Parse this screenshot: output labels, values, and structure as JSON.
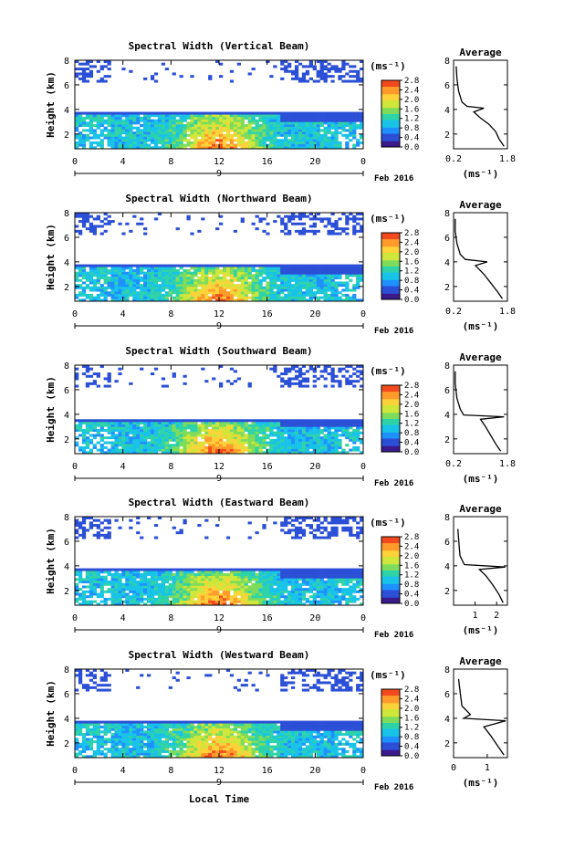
{
  "figure": {
    "month_label": "Feb 2016",
    "day_label": "9",
    "xlabel_bottom": "Local Time",
    "unit_label": "(ms⁻¹)",
    "avg_title": "Average",
    "avg_xlabel": "(ms⁻¹)",
    "colormap": [
      "#3a1a8c",
      "#2b4fd6",
      "#1e90ff",
      "#19c3e8",
      "#2ed3a8",
      "#7fdc5a",
      "#cfe63a",
      "#ffd23a",
      "#ff9b2a",
      "#f24a1e",
      "#c81010"
    ]
  },
  "chart_data": [
    {
      "type": "heatmap",
      "title": "Spectral Width (Vertical Beam)",
      "ylabel": "Height (km)",
      "x_ticks": [
        "0",
        "4",
        "8",
        "12",
        "16",
        "20",
        "0"
      ],
      "xlim": [
        0,
        24
      ],
      "y_ticks": [
        "2",
        "4",
        "6",
        "8"
      ],
      "ylim": [
        0.8,
        8
      ],
      "colorbar": {
        "ticks": [
          "2.8",
          "2.4",
          "2.0",
          "1.6",
          "1.2",
          "0.8",
          "0.4",
          "0.0"
        ],
        "range": [
          0,
          2.8
        ]
      },
      "average_profile": {
        "x_ticks": [
          "0.2",
          "1.8"
        ],
        "xlim": [
          0.2,
          1.8
        ],
        "y_ticks": [
          "2",
          "4",
          "6",
          "8"
        ],
        "ylim": [
          0.8,
          8
        ],
        "points": [
          [
            1.7,
            1.0
          ],
          [
            1.55,
            1.6
          ],
          [
            1.45,
            2.2
          ],
          [
            1.25,
            2.8
          ],
          [
            1.0,
            3.3
          ],
          [
            0.8,
            3.8
          ],
          [
            1.1,
            4.1
          ],
          [
            0.6,
            4.25
          ],
          [
            0.45,
            4.6
          ],
          [
            0.35,
            5.5
          ],
          [
            0.3,
            6.5
          ],
          [
            0.28,
            7.5
          ]
        ]
      }
    },
    {
      "type": "heatmap",
      "title": "Spectral Width (Northward Beam)",
      "ylabel": "Height (km)",
      "x_ticks": [
        "0",
        "4",
        "8",
        "12",
        "16",
        "20",
        "0"
      ],
      "xlim": [
        0,
        24
      ],
      "y_ticks": [
        "2",
        "4",
        "6",
        "8"
      ],
      "ylim": [
        0.8,
        8
      ],
      "colorbar": {
        "ticks": [
          "2.8",
          "2.4",
          "2.0",
          "1.6",
          "1.2",
          "0.8",
          "0.4",
          "0.0"
        ],
        "range": [
          0,
          2.8
        ]
      },
      "average_profile": {
        "x_ticks": [
          "0.2",
          "1.8"
        ],
        "xlim": [
          0.2,
          1.8
        ],
        "y_ticks": [
          "2",
          "4",
          "6",
          "8"
        ],
        "ylim": [
          0.8,
          8
        ],
        "points": [
          [
            1.65,
            1.0
          ],
          [
            1.5,
            1.6
          ],
          [
            1.3,
            2.3
          ],
          [
            1.1,
            3.0
          ],
          [
            0.85,
            3.7
          ],
          [
            1.2,
            4.0
          ],
          [
            0.55,
            4.2
          ],
          [
            0.4,
            4.6
          ],
          [
            0.3,
            5.5
          ],
          [
            0.25,
            6.5
          ],
          [
            0.25,
            7.5
          ]
        ]
      }
    },
    {
      "type": "heatmap",
      "title": "Spectral Width (Southward Beam)",
      "ylabel": "Height (km)",
      "x_ticks": [
        "0",
        "4",
        "8",
        "12",
        "16",
        "20",
        "0"
      ],
      "xlim": [
        0,
        24
      ],
      "y_ticks": [
        "2",
        "4",
        "6",
        "8"
      ],
      "ylim": [
        0.8,
        8
      ],
      "colorbar": {
        "ticks": [
          "2.8",
          "2.4",
          "2.0",
          "1.6",
          "1.2",
          "0.8",
          "0.4",
          "0.0"
        ],
        "range": [
          0,
          2.8
        ]
      },
      "average_profile": {
        "x_ticks": [
          "0.2",
          "1.8"
        ],
        "xlim": [
          0.2,
          1.8
        ],
        "y_ticks": [
          "2",
          "4",
          "6",
          "8"
        ],
        "ylim": [
          0.8,
          8
        ],
        "points": [
          [
            1.6,
            1.0
          ],
          [
            1.45,
            1.6
          ],
          [
            1.3,
            2.3
          ],
          [
            1.15,
            3.0
          ],
          [
            1.0,
            3.6
          ],
          [
            1.7,
            3.8
          ],
          [
            0.5,
            3.95
          ],
          [
            0.4,
            4.4
          ],
          [
            0.3,
            5.3
          ],
          [
            0.25,
            6.5
          ],
          [
            0.25,
            7.5
          ]
        ]
      }
    },
    {
      "type": "heatmap",
      "title": "Spectral Width (Eastward Beam)",
      "ylabel": "Height (km)",
      "x_ticks": [
        "0",
        "4",
        "8",
        "12",
        "16",
        "20",
        "0"
      ],
      "xlim": [
        0,
        24
      ],
      "y_ticks": [
        "2",
        "4",
        "6",
        "8"
      ],
      "ylim": [
        0.8,
        8
      ],
      "colorbar": {
        "ticks": [
          "2.8",
          "2.4",
          "2.0",
          "1.6",
          "1.2",
          "0.8",
          "0.4",
          "0.0"
        ],
        "range": [
          0,
          2.8
        ]
      },
      "average_profile": {
        "x_ticks": [
          "1",
          "2"
        ],
        "xlim": [
          0,
          2.5
        ],
        "y_ticks": [
          "2",
          "4",
          "6",
          "8"
        ],
        "ylim": [
          0.8,
          8
        ],
        "points": [
          [
            2.3,
            1.0
          ],
          [
            2.1,
            1.7
          ],
          [
            1.8,
            2.5
          ],
          [
            1.5,
            3.2
          ],
          [
            1.2,
            3.7
          ],
          [
            2.4,
            3.9
          ],
          [
            0.5,
            4.1
          ],
          [
            0.3,
            4.8
          ],
          [
            0.25,
            5.8
          ],
          [
            0.2,
            7.0
          ]
        ]
      }
    },
    {
      "type": "heatmap",
      "title": "Spectral Width (Westward Beam)",
      "ylabel": "Height (km)",
      "x_ticks": [
        "0",
        "4",
        "8",
        "12",
        "16",
        "20",
        "0"
      ],
      "xlim": [
        0,
        24
      ],
      "y_ticks": [
        "2",
        "4",
        "6",
        "8"
      ],
      "ylim": [
        0.8,
        8
      ],
      "colorbar": {
        "ticks": [
          "2.8",
          "2.4",
          "2.0",
          "1.6",
          "1.2",
          "0.8",
          "0.4",
          "0.0"
        ],
        "range": [
          0,
          2.8
        ]
      },
      "average_profile": {
        "x_ticks": [
          "0",
          "1"
        ],
        "xlim": [
          0,
          1.6
        ],
        "y_ticks": [
          "2",
          "4",
          "6",
          "8"
        ],
        "ylim": [
          0.8,
          8
        ],
        "points": [
          [
            1.5,
            1.0
          ],
          [
            1.3,
            1.8
          ],
          [
            1.1,
            2.6
          ],
          [
            0.9,
            3.3
          ],
          [
            1.55,
            3.8
          ],
          [
            0.3,
            4.0
          ],
          [
            0.5,
            4.3
          ],
          [
            0.25,
            5.0
          ],
          [
            0.2,
            6.0
          ],
          [
            0.15,
            7.2
          ]
        ]
      }
    }
  ]
}
